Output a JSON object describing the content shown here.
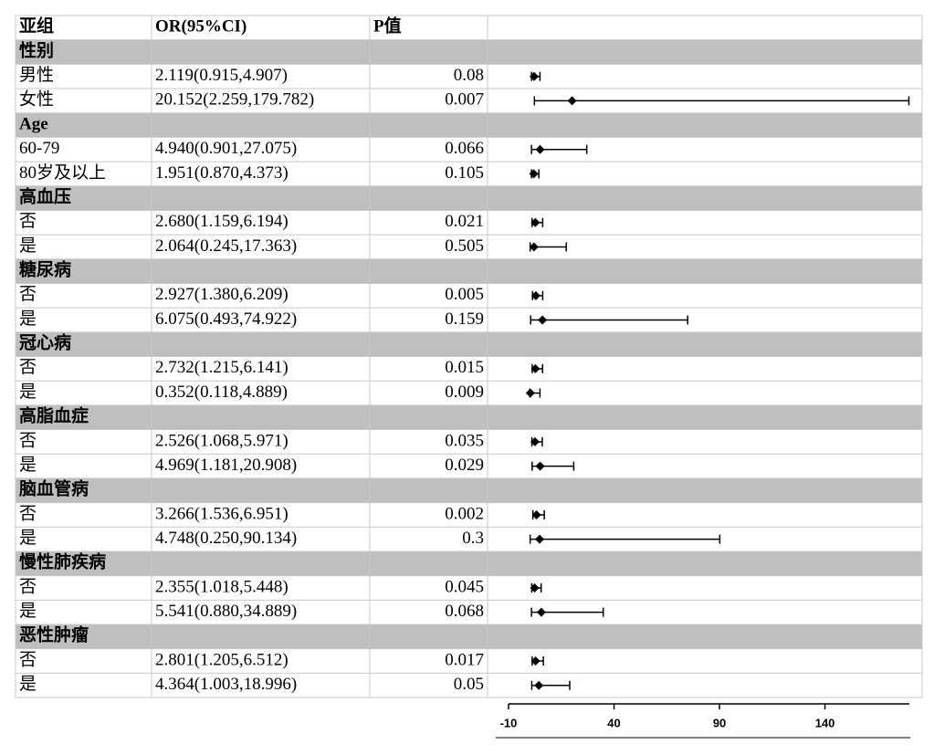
{
  "chart_data": {
    "type": "forest",
    "columns": [
      "亚组",
      "OR(95%CI)",
      "P值"
    ],
    "xlim": [
      -10,
      180
    ],
    "xticks": [
      -10,
      40,
      90,
      140
    ],
    "groups": [
      {
        "name": "性别",
        "categories": [
          "男性",
          "女性"
        ],
        "values": [
          2.119,
          20.152
        ],
        "lower": [
          0.915,
          2.259
        ],
        "upper": [
          4.907,
          179.782
        ],
        "value_labels": [
          "2.119(0.915,4.907)",
          "20.152(2.259,179.782)"
        ],
        "p": [
          0.08,
          0.007
        ]
      },
      {
        "name": "Age",
        "categories": [
          "60-79",
          "80岁及以上"
        ],
        "values": [
          4.94,
          1.951
        ],
        "lower": [
          0.901,
          0.87
        ],
        "upper": [
          27.075,
          4.373
        ],
        "value_labels": [
          "4.940(0.901,27.075)",
          "1.951(0.870,4.373)"
        ],
        "p": [
          0.066,
          0.105
        ]
      },
      {
        "name": "高血压",
        "categories": [
          "否",
          "是"
        ],
        "values": [
          2.68,
          2.064
        ],
        "lower": [
          1.159,
          0.245
        ],
        "upper": [
          6.194,
          17.363
        ],
        "value_labels": [
          "2.680(1.159,6.194)",
          "2.064(0.245,17.363)"
        ],
        "p": [
          0.021,
          0.505
        ]
      },
      {
        "name": "糖尿病",
        "categories": [
          "否",
          "是"
        ],
        "values": [
          2.927,
          6.075
        ],
        "lower": [
          1.38,
          0.493
        ],
        "upper": [
          6.209,
          74.922
        ],
        "value_labels": [
          "2.927(1.380,6.209)",
          "6.075(0.493,74.922)"
        ],
        "p": [
          0.005,
          0.159
        ]
      },
      {
        "name": "冠心病",
        "categories": [
          "否",
          "是"
        ],
        "values": [
          2.732,
          0.352
        ],
        "lower": [
          1.215,
          0.118
        ],
        "upper": [
          6.141,
          4.889
        ],
        "value_labels": [
          "2.732(1.215,6.141)",
          "0.352(0.118,4.889)"
        ],
        "p": [
          0.015,
          0.009
        ]
      },
      {
        "name": "高脂血症",
        "categories": [
          "否",
          "是"
        ],
        "values": [
          2.526,
          4.969
        ],
        "lower": [
          1.068,
          1.181
        ],
        "upper": [
          5.971,
          20.908
        ],
        "value_labels": [
          "2.526(1.068,5.971)",
          "4.969(1.181,20.908)"
        ],
        "p": [
          0.035,
          0.029
        ]
      },
      {
        "name": "脑血管病",
        "categories": [
          "否",
          "是"
        ],
        "values": [
          3.266,
          4.748
        ],
        "lower": [
          1.536,
          0.25
        ],
        "upper": [
          6.951,
          90.134
        ],
        "value_labels": [
          "3.266(1.536,6.951)",
          "4.748(0.250,90.134)"
        ],
        "p": [
          0.002,
          0.3
        ]
      },
      {
        "name": "慢性肺疾病",
        "categories": [
          "否",
          "是"
        ],
        "values": [
          2.355,
          5.541
        ],
        "lower": [
          1.018,
          0.88
        ],
        "upper": [
          5.448,
          34.889
        ],
        "value_labels": [
          "2.355(1.018,5.448)",
          "5.541(0.880,34.889)"
        ],
        "p": [
          0.045,
          0.068
        ]
      },
      {
        "name": "恶性肿瘤",
        "categories": [
          "否",
          "是"
        ],
        "values": [
          2.801,
          4.364
        ],
        "lower": [
          1.205,
          1.003
        ],
        "upper": [
          6.512,
          18.996
        ],
        "value_labels": [
          "2.801(1.205,6.512)",
          "4.364(1.003,18.996)"
        ],
        "p": [
          0.017,
          0.05
        ]
      }
    ]
  }
}
